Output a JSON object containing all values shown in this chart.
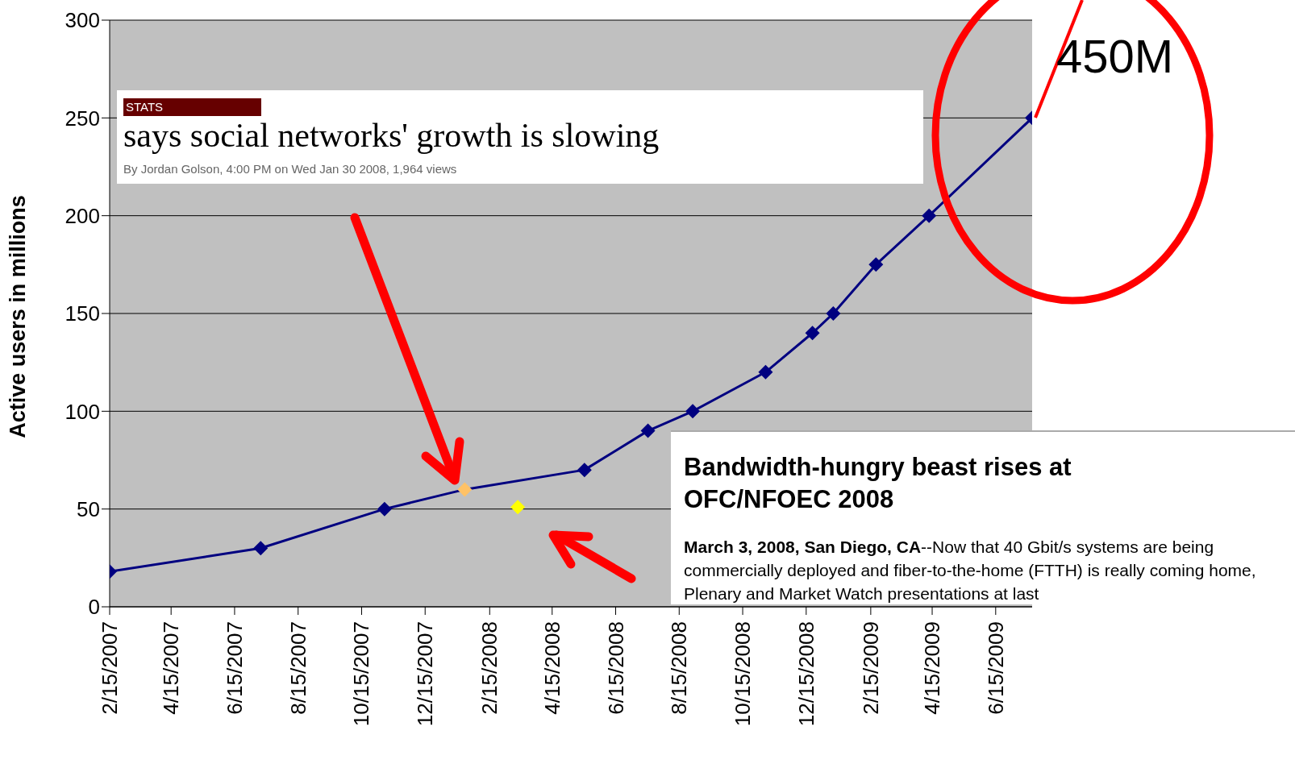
{
  "chart_data": {
    "type": "line",
    "ylabel": "Active users in millions",
    "xlim": [
      "2007-02-15",
      "2009-07-20"
    ],
    "xticks": [
      {
        "value": "2007-02-15",
        "label": "2/15/2007"
      },
      {
        "value": "2007-04-15",
        "label": "4/15/2007"
      },
      {
        "value": "2007-06-15",
        "label": "6/15/2007"
      },
      {
        "value": "2007-08-15",
        "label": "8/15/2007"
      },
      {
        "value": "2007-10-15",
        "label": "10/15/2007"
      },
      {
        "value": "2007-12-15",
        "label": "12/15/2007"
      },
      {
        "value": "2008-02-15",
        "label": "2/15/2008"
      },
      {
        "value": "2008-04-15",
        "label": "4/15/2008"
      },
      {
        "value": "2008-06-15",
        "label": "6/15/2008"
      },
      {
        "value": "2008-08-15",
        "label": "8/15/2008"
      },
      {
        "value": "2008-10-15",
        "label": "10/15/2008"
      },
      {
        "value": "2008-12-15",
        "label": "12/15/2008"
      },
      {
        "value": "2009-02-15",
        "label": "2/15/2009"
      },
      {
        "value": "2009-04-15",
        "label": "4/15/2009"
      },
      {
        "value": "2009-06-15",
        "label": "6/15/2009"
      }
    ],
    "ylim": [
      0,
      300
    ],
    "yticks": [
      0,
      50,
      100,
      150,
      200,
      250,
      300
    ],
    "grid": "y",
    "marker": "diamond",
    "line_style": "solid",
    "series": [
      {
        "color": "#000080",
        "x": [
          "2007-02-15",
          "2007-07-10",
          "2007-11-06",
          "2008-01-22",
          "2008-05-16",
          "2008-07-16",
          "2008-08-28",
          "2008-11-06",
          "2008-12-21",
          "2009-01-10",
          "2009-02-20",
          "2009-04-12",
          "2009-07-20"
        ],
        "values": [
          18,
          30,
          50,
          60,
          70,
          90,
          100,
          120,
          140,
          150,
          175,
          200,
          250
        ],
        "colors": [
          "#000080",
          "#000080",
          "#000080",
          "#ffc266",
          "#000080",
          "#000080",
          "#000080",
          "#000080",
          "#000080",
          "#000080",
          "#000080",
          "#000080",
          "#000080"
        ]
      },
      {
        "type": "scatter",
        "color": "#ffff00",
        "x": [
          "2008-03-13"
        ],
        "values": [
          51
        ]
      }
    ],
    "annotations": [
      "450M",
      "STATS",
      "says social networks' growth is slowing",
      "By Jordan Golson, 4:00 PM on Wed Jan 30 2008, 1,964 views",
      "Bandwidth-hungry beast rises at OFC/NFOEC 2008",
      "March 3, 2008, San Diego, CA",
      "--Now that 40 Gbit/s systems are being commercially deployed and fiber-to-the-home (FTTH) is really coming home, Plenary and Market Watch presentations at last"
    ]
  }
}
